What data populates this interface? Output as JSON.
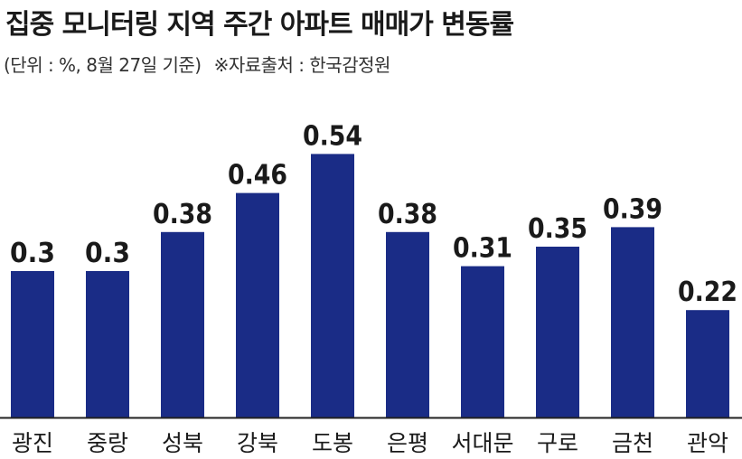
{
  "header": {
    "title": "집중 모니터링 지역 주간 아파트 매매가 변동률",
    "unit_note": "(단위 : %, 8월 27일 기준)",
    "source": "※자료출처 : 한국감정원"
  },
  "colors": {
    "bar": "#1a2c86",
    "baseline": "#222222"
  },
  "chart_data": {
    "type": "bar",
    "title": "집중 모니터링 지역 주간 아파트 매매가 변동률",
    "xlabel": "",
    "ylabel": "",
    "ylim": [
      0,
      0.6
    ],
    "grid": false,
    "categories": [
      "광진",
      "중랑",
      "성북",
      "강북",
      "도봉",
      "은평",
      "서대문",
      "구로",
      "금천",
      "관악"
    ],
    "values": [
      0.3,
      0.3,
      0.38,
      0.46,
      0.54,
      0.38,
      0.31,
      0.35,
      0.39,
      0.22
    ],
    "value_labels": [
      "0.3",
      "0.3",
      "0.38",
      "0.46",
      "0.54",
      "0.38",
      "0.31",
      "0.35",
      "0.39",
      "0.22"
    ]
  }
}
